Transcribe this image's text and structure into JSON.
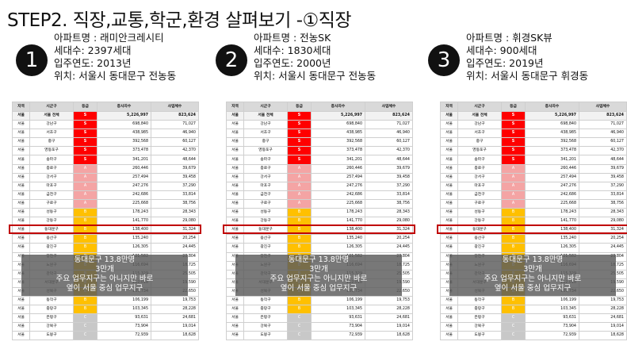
{
  "title": "STEP2. 직장,교통,학군,환경 살펴보기 -①직장",
  "apartments": [
    {
      "num": "1",
      "name": "아파트명 : 래미안크레시티",
      "units": "세대수: 2397세대",
      "year": "입주연도: 2013년",
      "location": "위치: 서울시 동대문구 전농동"
    },
    {
      "num": "2",
      "name": "아파트명 : 전농SK",
      "units": "세대수: 1830세대",
      "year": "입주연도: 2000년",
      "location": "위치: 서울시 동대문구 전농동"
    },
    {
      "num": "3",
      "name": "아파트명 : 휘경SK뷰",
      "units": "세대수: 900세대",
      "year": "입주연도: 2019년",
      "location": "위치: 서울시 동대문구 휘경동"
    }
  ],
  "table": {
    "headers": [
      "지역",
      "시군구",
      "등급",
      "종사자수",
      "사업체수"
    ],
    "rows": [
      [
        "서울",
        "서울 전체",
        "S",
        "5,226,997",
        "823,624"
      ],
      [
        "서울",
        "강남구",
        "S",
        "698,840",
        "71,027"
      ],
      [
        "서울",
        "서초구",
        "S",
        "438,985",
        "46,940"
      ],
      [
        "서울",
        "중구",
        "S",
        "392,568",
        "60,127"
      ],
      [
        "서울",
        "영등포구",
        "S",
        "373,478",
        "42,370"
      ],
      [
        "서울",
        "송파구",
        "S",
        "341,201",
        "48,644"
      ],
      [
        "서울",
        "종로구",
        "A",
        "260,446",
        "39,679"
      ],
      [
        "서울",
        "강서구",
        "A",
        "257,494",
        "39,458"
      ],
      [
        "서울",
        "마포구",
        "A",
        "247,276",
        "37,290"
      ],
      [
        "서울",
        "금천구",
        "A",
        "242,686",
        "33,814"
      ],
      [
        "서울",
        "구로구",
        "A",
        "225,668",
        "38,756"
      ],
      [
        "서울",
        "성동구",
        "B",
        "178,243",
        "28,343"
      ],
      [
        "서울",
        "강동구",
        "B",
        "141,770",
        "29,080"
      ],
      [
        "서울",
        "동대문구",
        "B",
        "138,400",
        "31,324"
      ],
      [
        "서울",
        "용산구",
        "B",
        "135,240",
        "20,254"
      ],
      [
        "서울",
        "광진구",
        "B",
        "126,305",
        "24,445"
      ],
      [
        "서울",
        "양천구",
        "B",
        "121,582",
        "23,804"
      ],
      [
        "서울",
        "노원구",
        "B",
        "116,694",
        "18,725"
      ],
      [
        "서울",
        "관악구",
        "B",
        "115,329",
        "25,505"
      ],
      [
        "서울",
        "서대문구",
        "B",
        "112,018",
        "19,590"
      ],
      [
        "서울",
        "성북구",
        "B",
        "109,734",
        "22,650"
      ],
      [
        "서울",
        "동작구",
        "B",
        "106,199",
        "19,753"
      ],
      [
        "서울",
        "중랑구",
        "B",
        "103,345",
        "28,228"
      ],
      [
        "서울",
        "은평구",
        "C",
        "93,631",
        "24,681"
      ],
      [
        "서울",
        "강북구",
        "C",
        "73,904",
        "19,014"
      ],
      [
        "서울",
        "도봉구",
        "C",
        "72,939",
        "18,628"
      ]
    ]
  },
  "overlay": {
    "line1": "동대문구 13.8만명",
    "line2": "3만개",
    "line3": "주요 업무지구는 아니지만 바로",
    "line4": "옆이 서울 중심 업무지구"
  },
  "colors": {
    "S": "#ff0000",
    "A": "#f4a4a4",
    "B": "#ffc000",
    "C": "#c8c8c8",
    "highlight": "#c00000"
  }
}
